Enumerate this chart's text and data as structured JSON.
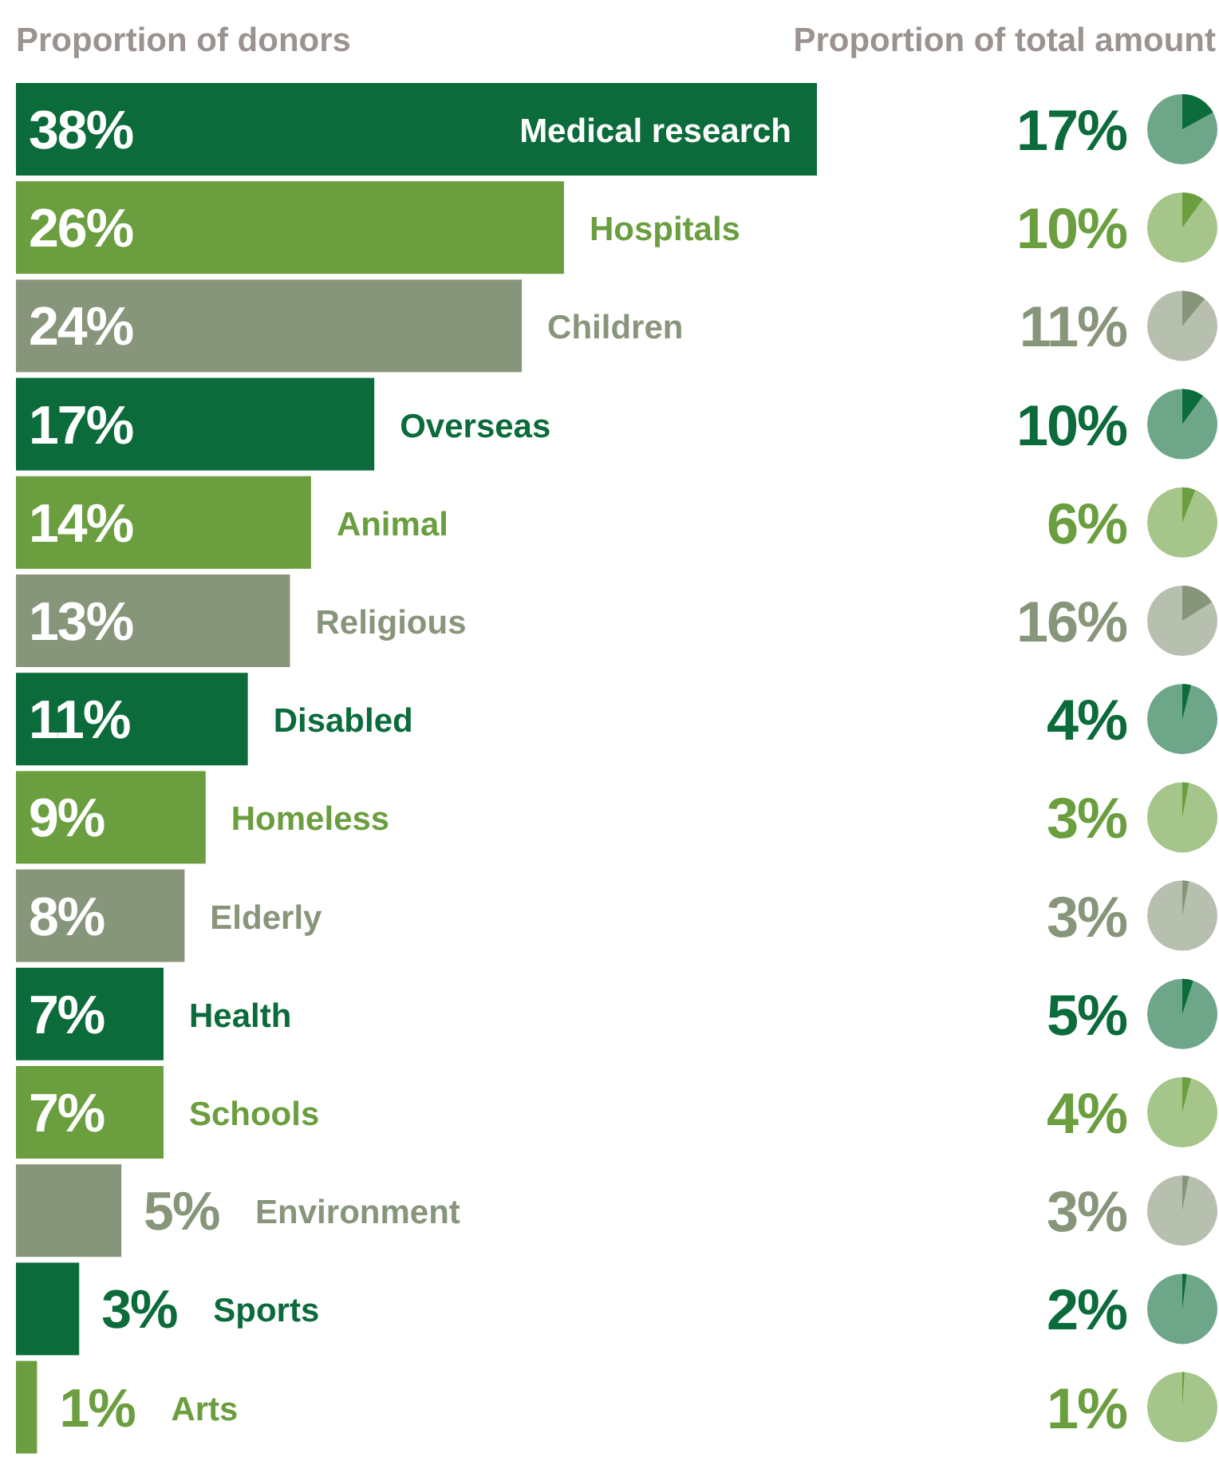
{
  "chart_data": [
    {
      "type": "bar",
      "orientation": "horizontal",
      "title": "Proportion of donors",
      "categories": [
        "Medical research",
        "Hospitals",
        "Children",
        "Overseas",
        "Animal",
        "Religious",
        "Disabled",
        "Homeless",
        "Elderly",
        "Health",
        "Schools",
        "Environment",
        "Sports",
        "Arts"
      ],
      "values": [
        38,
        26,
        24,
        17,
        14,
        13,
        11,
        9,
        8,
        7,
        7,
        5,
        3,
        1
      ],
      "value_labels": [
        "38%",
        "26%",
        "24%",
        "17%",
        "14%",
        "13%",
        "11%",
        "9%",
        "8%",
        "7%",
        "7%",
        "5%",
        "3%",
        "1%"
      ],
      "colors": [
        "#0b6b3a",
        "#6a9e3e",
        "#87957a",
        "#0b6b3a",
        "#6a9e3e",
        "#87957a",
        "#0b6b3a",
        "#6a9e3e",
        "#87957a",
        "#0b6b3a",
        "#6a9e3e",
        "#87957a",
        "#0b6b3a",
        "#6a9e3e"
      ]
    },
    {
      "type": "other",
      "title": "Proportion of total amount",
      "values": [
        17,
        10,
        11,
        10,
        6,
        16,
        4,
        3,
        3,
        5,
        4,
        3,
        2,
        1
      ],
      "value_labels": [
        "17%",
        "10%",
        "11%",
        "10%",
        "6%",
        "16%",
        "4%",
        "3%",
        "3%",
        "5%",
        "4%",
        "3%",
        "2%",
        "1%"
      ],
      "colors": [
        "#0b6b3a",
        "#6a9e3e",
        "#87957a",
        "#0b6b3a",
        "#6a9e3e",
        "#87957a",
        "#0b6b3a",
        "#6a9e3e",
        "#87957a",
        "#0b6b3a",
        "#6a9e3e",
        "#87957a",
        "#0b6b3a",
        "#6a9e3e"
      ]
    }
  ]
}
